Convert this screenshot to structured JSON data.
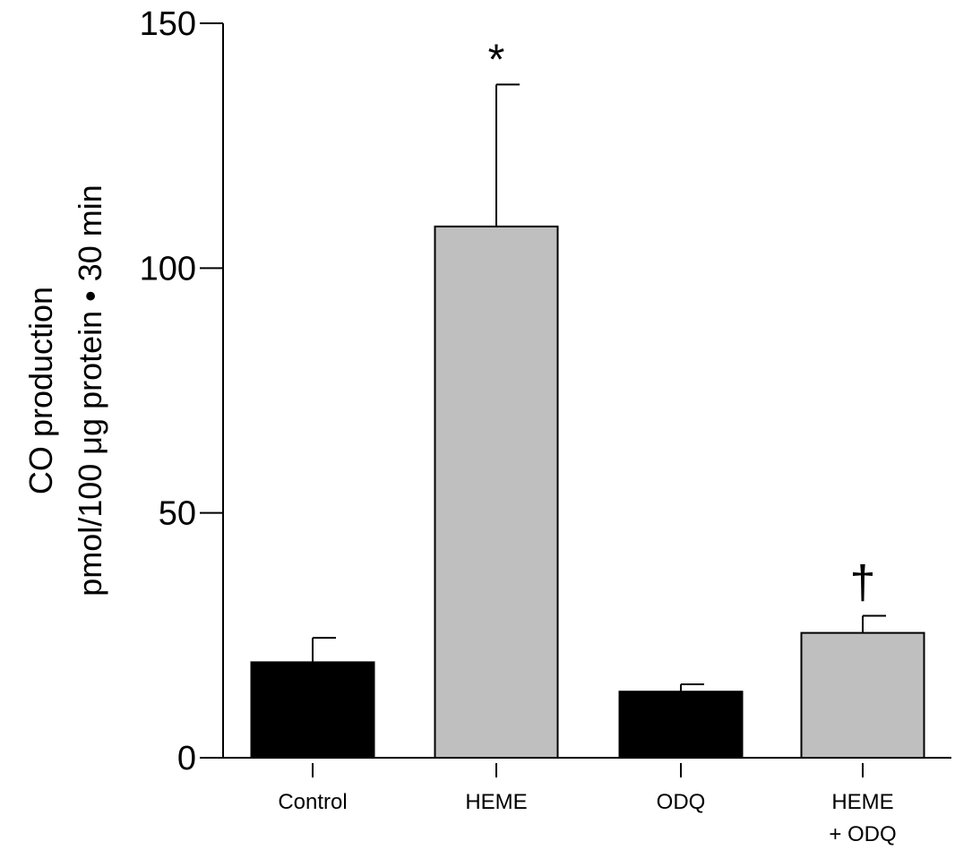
{
  "chart_data": {
    "type": "bar",
    "categories": [
      "Control",
      "HEME",
      "ODQ",
      "HEME + ODQ"
    ],
    "category_lines": [
      [
        "Control"
      ],
      [
        "HEME"
      ],
      [
        "ODQ"
      ],
      [
        "HEME",
        "+ ODQ"
      ]
    ],
    "values": [
      19.5,
      108.5,
      13.5,
      25.5
    ],
    "errors": [
      5,
      29,
      1.5,
      3.5
    ],
    "bar_colors": [
      "#000000",
      "#bfbfbf",
      "#000000",
      "#bfbfbf"
    ],
    "annotations": [
      "",
      "*",
      "",
      "†"
    ],
    "ylabel": [
      "CO production",
      "pmol/100 μg protein • 30 min"
    ],
    "ylim": [
      0,
      150
    ],
    "yticks": [
      0,
      50,
      100,
      150
    ],
    "grid": false
  }
}
